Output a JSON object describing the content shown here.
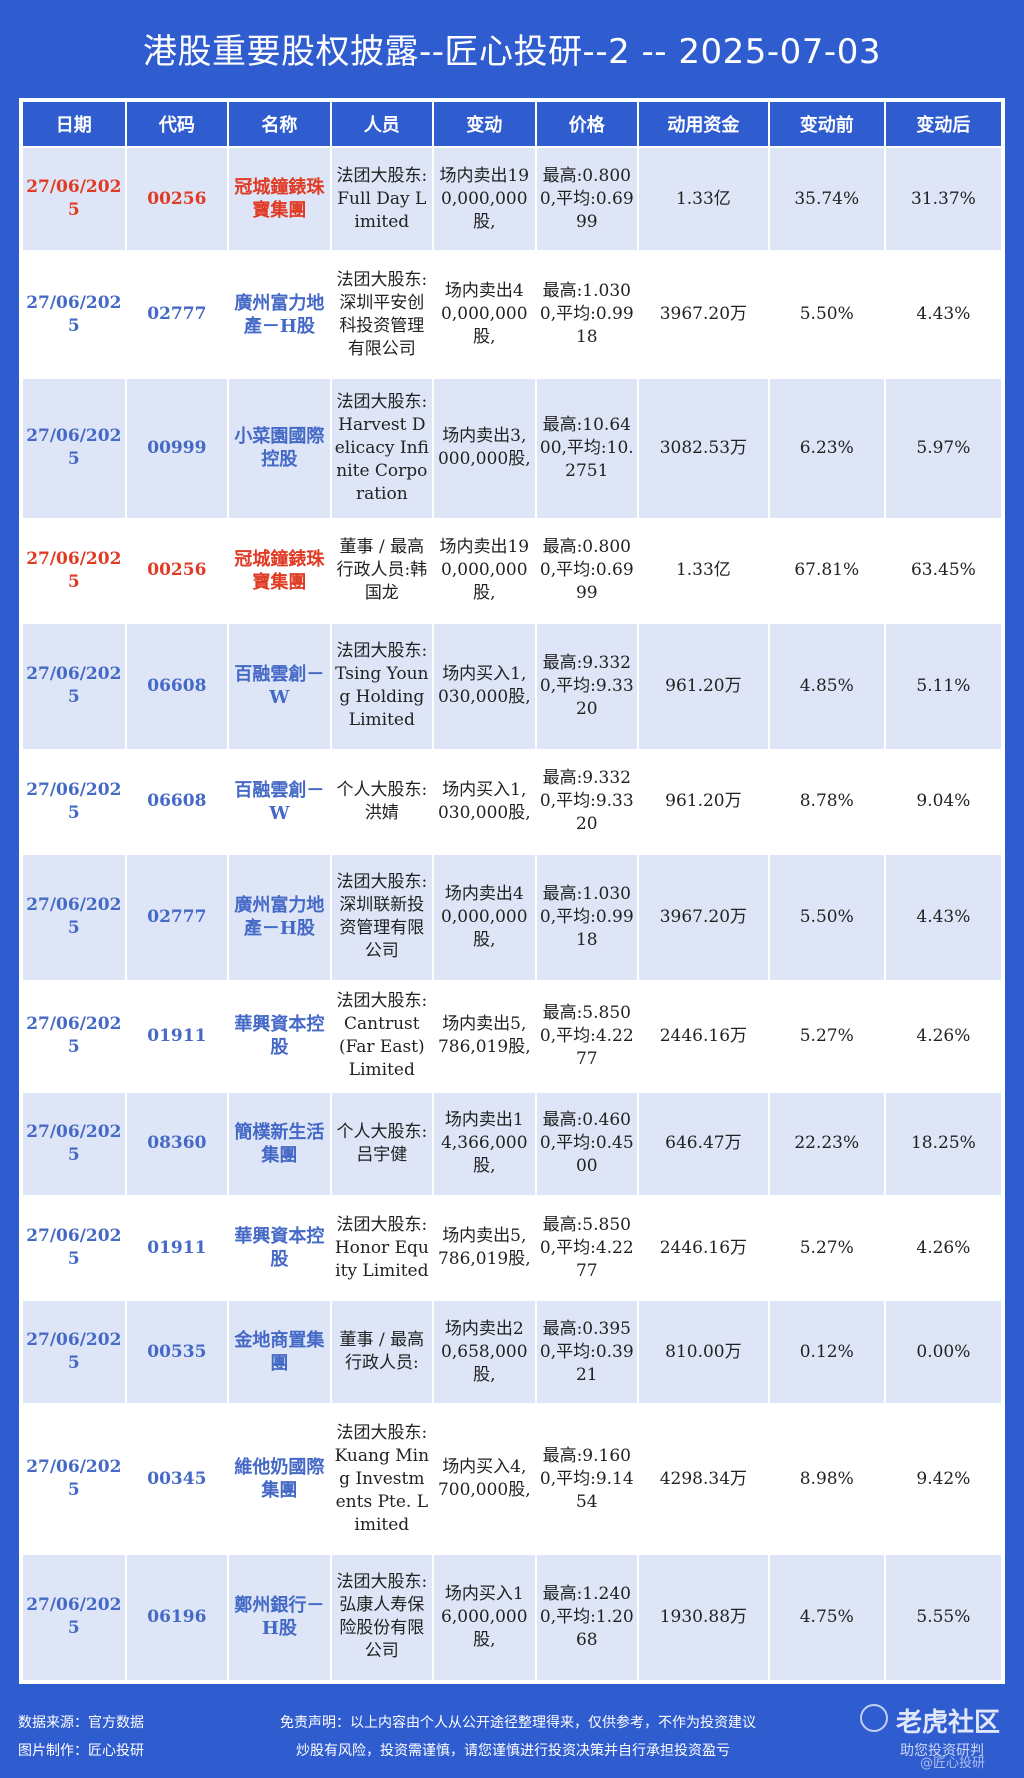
{
  "title": "港股重要股权披露--匠心投研--2 -- 2025-07-03",
  "headers": [
    "日期",
    "代码",
    "名称",
    "人员",
    "变动",
    "价格",
    "动用资金",
    "变动前",
    "变动后"
  ],
  "rows": [
    {
      "date": "27/06/2025",
      "code": "00256",
      "name": "冠城鐘錶珠寶集團",
      "person": "法团大股东:Full Day Limited",
      "change": "场内卖出190,000,000股,",
      "price": "最高:0.8000,平均:0.6999",
      "funds": "1.33亿",
      "before": "35.74%",
      "after": "31.37%"
    },
    {
      "date": "27/06/2025",
      "code": "02777",
      "name": "廣州富力地產－H股",
      "person": "法团大股东:深圳平安创科投资管理有限公司",
      "change": "场内卖出40,000,000股,",
      "price": "最高:1.0300,平均:0.9918",
      "funds": "3967.20万",
      "before": "5.50%",
      "after": "4.43%"
    },
    {
      "date": "27/06/2025",
      "code": "00999",
      "name": "小菜園國際控股",
      "person": "法团大股东:Harvest Delicacy Infinite Corporation",
      "change": "场内卖出3,000,000股,",
      "price": "最高:10.6400,平均:10.2751",
      "funds": "3082.53万",
      "before": "6.23%",
      "after": "5.97%"
    },
    {
      "date": "27/06/2025",
      "code": "00256",
      "name": "冠城鐘錶珠寶集團",
      "person": "董事 / 最高行政人员:韩国龙",
      "change": "场内卖出190,000,000股,",
      "price": "最高:0.8000,平均:0.6999",
      "funds": "1.33亿",
      "before": "67.81%",
      "after": "63.45%"
    },
    {
      "date": "27/06/2025",
      "code": "06608",
      "name": "百融雲創－W",
      "person": "法团大股东:Tsing Young Holding Limited",
      "change": "场内买入1,030,000股,",
      "price": "最高:9.3320,平均:9.3320",
      "funds": "961.20万",
      "before": "4.85%",
      "after": "5.11%"
    },
    {
      "date": "27/06/2025",
      "code": "06608",
      "name": "百融雲創－W",
      "person": "个人大股东:洪婧",
      "change": "场内买入1,030,000股,",
      "price": "最高:9.3320,平均:9.3320",
      "funds": "961.20万",
      "before": "8.78%",
      "after": "9.04%"
    },
    {
      "date": "27/06/2025",
      "code": "02777",
      "name": "廣州富力地產－H股",
      "person": "法团大股东:深圳联新投资管理有限公司",
      "change": "场内卖出40,000,000股,",
      "price": "最高:1.0300,平均:0.9918",
      "funds": "3967.20万",
      "before": "5.50%",
      "after": "4.43%"
    },
    {
      "date": "27/06/2025",
      "code": "01911",
      "name": "華興資本控股",
      "person": "法团大股东:Cantrust (Far East) Limited",
      "change": "场内卖出5,786,019股,",
      "price": "最高:5.8500,平均:4.2277",
      "funds": "2446.16万",
      "before": "5.27%",
      "after": "4.26%"
    },
    {
      "date": "27/06/2025",
      "code": "08360",
      "name": "簡樸新生活集團",
      "person": "个人大股东:吕宇健",
      "change": "场内卖出14,366,000股,",
      "price": "最高:0.4600,平均:0.4500",
      "funds": "646.47万",
      "before": "22.23%",
      "after": "18.25%"
    },
    {
      "date": "27/06/2025",
      "code": "01911",
      "name": "華興資本控股",
      "person": "法团大股东:Honor Equity Limited",
      "change": "场内卖出5,786,019股,",
      "price": "最高:5.8500,平均:4.2277",
      "funds": "2446.16万",
      "before": "5.27%",
      "after": "4.26%"
    },
    {
      "date": "27/06/2025",
      "code": "00535",
      "name": "金地商置集團",
      "person": "董事 / 最高行政人员:",
      "change": "场内卖出20,658,000股,",
      "price": "最高:0.3950,平均:0.3921",
      "funds": "810.00万",
      "before": "0.12%",
      "after": "0.00%"
    },
    {
      "date": "27/06/2025",
      "code": "00345",
      "name": "維他奶國際集團",
      "person": "法团大股东:Kuang Ming Investments Pte. Limited",
      "change": "场内买入4,700,000股,",
      "price": "最高:9.1600,平均:9.1454",
      "funds": "4298.34万",
      "before": "8.98%",
      "after": "9.42%"
    },
    {
      "date": "27/06/2025",
      "code": "06196",
      "name": "鄭州銀行－H股",
      "person": "法团大股东:弘康人寿保险股份有限公司",
      "change": "场内买入16,000,000股,",
      "price": "最高:1.2400,平均:1.2068",
      "funds": "1930.88万",
      "before": "4.75%",
      "after": "5.55%"
    }
  ],
  "footer": {
    "source": "数据来源：官方数据",
    "maker": "图片制作：匠心投研",
    "disclaimer_1": "免责声明：以上内容由个人从公开途径整理得来，仅供参考，不作为投资建议",
    "disclaimer_2": "炒股有风险，投资需谨慎，请您谨慎进行投资决策并自行承担投资盈亏",
    "watermark": "老虎社区",
    "watermark_sub": "助您投资研判",
    "watermark_handle": "@匠心投研"
  },
  "colors": {
    "accent": "#2f5ccf",
    "highlight_text": "#e03b24",
    "link_text": "#4469c6",
    "stripe": "#dde5f6"
  }
}
